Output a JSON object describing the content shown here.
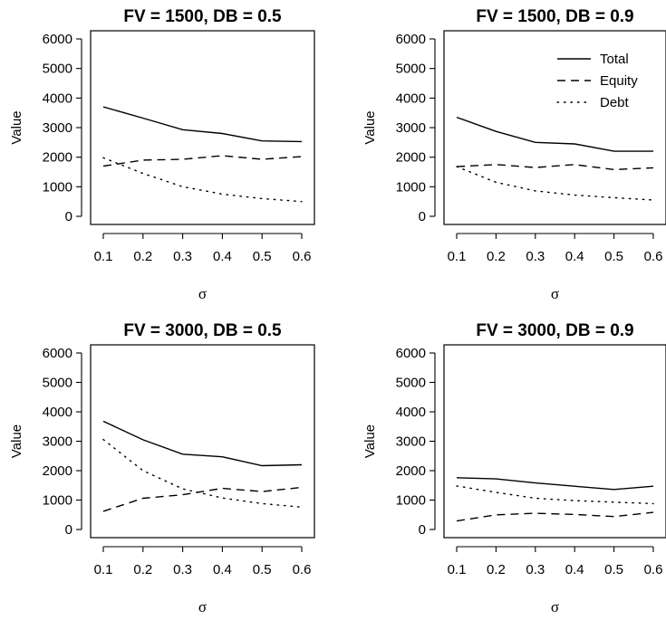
{
  "chart_data": [
    {
      "type": "line",
      "title": "FV = 1500, DB = 0.5",
      "xlabel": "σ",
      "ylabel": "Value",
      "x": [
        0.1,
        0.2,
        0.3,
        0.4,
        0.5,
        0.6
      ],
      "x_tick_labels": [
        "0.1",
        "0.2",
        "0.3",
        "0.4",
        "0.5",
        "0.6"
      ],
      "y_ticks": [
        0,
        1000,
        2000,
        3000,
        4000,
        5000,
        6000
      ],
      "y_tick_labels": [
        "0",
        "1000",
        "2000",
        "3000",
        "4000",
        "5000",
        "6000"
      ],
      "series": [
        {
          "name": "Total",
          "line_style": "solid",
          "values": [
            3700,
            3320,
            2930,
            2800,
            2550,
            2530
          ]
        },
        {
          "name": "Equity",
          "line_style": "dashed",
          "values": [
            1700,
            1900,
            1930,
            2050,
            1930,
            2020
          ]
        },
        {
          "name": "Debt",
          "line_style": "dotted",
          "values": [
            1980,
            1450,
            1000,
            750,
            600,
            500
          ]
        }
      ],
      "legend": false
    },
    {
      "type": "line",
      "title": "FV = 1500, DB = 0.9",
      "xlabel": "σ",
      "ylabel": "Value",
      "x": [
        0.1,
        0.2,
        0.3,
        0.4,
        0.5,
        0.6
      ],
      "x_tick_labels": [
        "0.1",
        "0.2",
        "0.3",
        "0.4",
        "0.5",
        "0.6"
      ],
      "y_ticks": [
        0,
        1000,
        2000,
        3000,
        4000,
        5000,
        6000
      ],
      "y_tick_labels": [
        "0",
        "1000",
        "2000",
        "3000",
        "4000",
        "5000",
        "6000"
      ],
      "series": [
        {
          "name": "Total",
          "line_style": "solid",
          "values": [
            3350,
            2870,
            2500,
            2450,
            2200,
            2200
          ]
        },
        {
          "name": "Equity",
          "line_style": "dashed",
          "values": [
            1680,
            1750,
            1650,
            1750,
            1580,
            1640
          ]
        },
        {
          "name": "Debt",
          "line_style": "dotted",
          "values": [
            1680,
            1150,
            860,
            720,
            630,
            550
          ]
        }
      ],
      "legend": true,
      "legend_position": "top-right"
    },
    {
      "type": "line",
      "title": "FV = 3000, DB = 0.5",
      "xlabel": "σ",
      "ylabel": "Value",
      "x": [
        0.1,
        0.2,
        0.3,
        0.4,
        0.5,
        0.6
      ],
      "x_tick_labels": [
        "0.1",
        "0.2",
        "0.3",
        "0.4",
        "0.5",
        "0.6"
      ],
      "y_ticks": [
        0,
        1000,
        2000,
        3000,
        4000,
        5000,
        6000
      ],
      "y_tick_labels": [
        "0",
        "1000",
        "2000",
        "3000",
        "4000",
        "5000",
        "6000"
      ],
      "series": [
        {
          "name": "Total",
          "line_style": "solid",
          "values": [
            3680,
            3050,
            2560,
            2470,
            2170,
            2200
          ]
        },
        {
          "name": "Equity",
          "line_style": "dashed",
          "values": [
            620,
            1060,
            1180,
            1400,
            1290,
            1430
          ]
        },
        {
          "name": "Debt",
          "line_style": "dotted",
          "values": [
            3060,
            2000,
            1380,
            1070,
            880,
            760
          ]
        }
      ],
      "legend": false
    },
    {
      "type": "line",
      "title": "FV = 3000, DB = 0.9",
      "xlabel": "σ",
      "ylabel": "Value",
      "x": [
        0.1,
        0.2,
        0.3,
        0.4,
        0.5,
        0.6
      ],
      "x_tick_labels": [
        "0.1",
        "0.2",
        "0.3",
        "0.4",
        "0.5",
        "0.6"
      ],
      "y_ticks": [
        0,
        1000,
        2000,
        3000,
        4000,
        5000,
        6000
      ],
      "y_tick_labels": [
        "0",
        "1000",
        "2000",
        "3000",
        "4000",
        "5000",
        "6000"
      ],
      "series": [
        {
          "name": "Total",
          "line_style": "solid",
          "values": [
            1760,
            1720,
            1580,
            1470,
            1360,
            1470
          ]
        },
        {
          "name": "Equity",
          "line_style": "dashed",
          "values": [
            290,
            500,
            550,
            510,
            440,
            580
          ]
        },
        {
          "name": "Debt",
          "line_style": "dotted",
          "values": [
            1480,
            1260,
            1060,
            980,
            930,
            880
          ]
        }
      ],
      "legend": false
    }
  ]
}
